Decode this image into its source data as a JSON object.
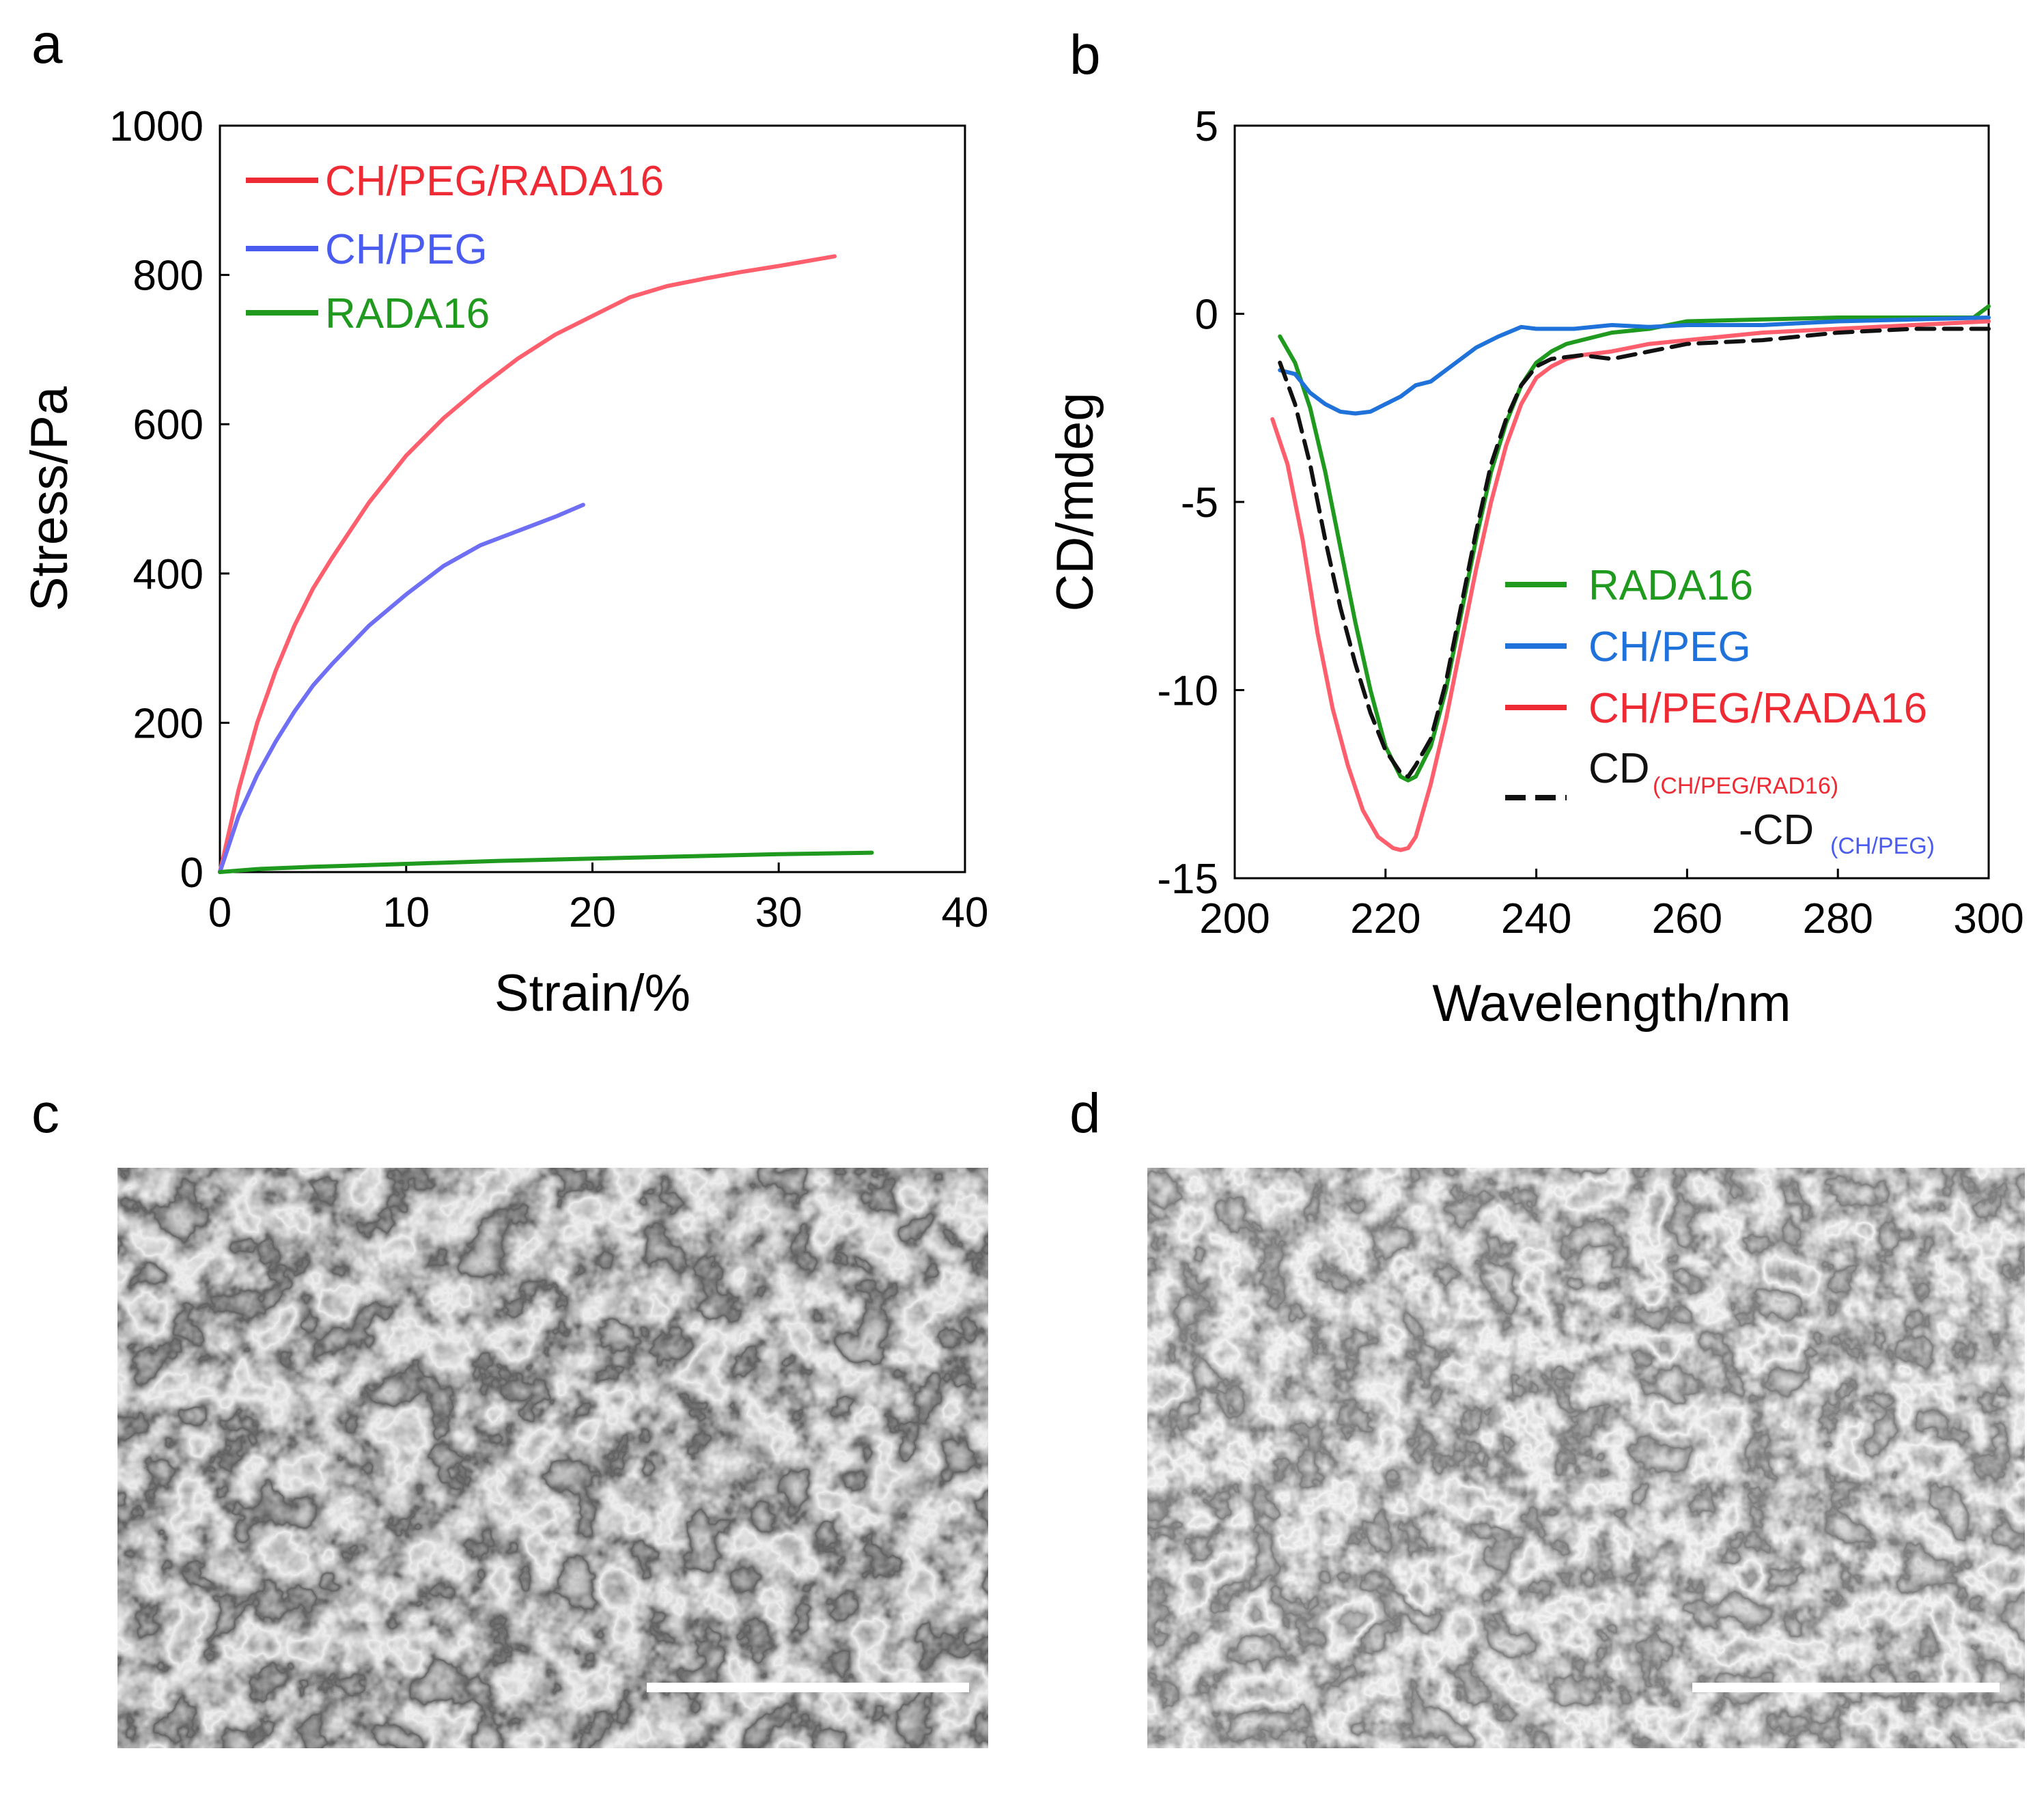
{
  "panel_labels": {
    "a": "a",
    "b": "b",
    "c": "c",
    "d": "d"
  },
  "colors": {
    "red": "#ff5e6c",
    "red_legend": "#ee2a34",
    "blue": "#6f6ff5",
    "blue_b": "#1f72d9",
    "green": "#1f9a1f",
    "dashed": "#111111"
  },
  "chart_data": [
    {
      "id": "a",
      "type": "line",
      "title": "",
      "xlabel": "Strain/%",
      "ylabel": "Stress/Pa",
      "xlim": [
        0,
        40
      ],
      "ylim": [
        0,
        1000
      ],
      "xticks": [
        0,
        10,
        20,
        30,
        40
      ],
      "yticks": [
        0,
        200,
        400,
        600,
        800,
        1000
      ],
      "grid": false,
      "legend_position": "top-left",
      "series": [
        {
          "name": "CH/PEG/RADA16",
          "color": "#ff5e6c",
          "x": [
            0,
            1,
            2,
            3,
            4,
            5,
            6,
            8,
            10,
            12,
            14,
            16,
            18,
            20,
            22,
            24,
            26,
            28,
            30,
            33
          ],
          "y": [
            0,
            110,
            200,
            270,
            330,
            380,
            420,
            495,
            558,
            608,
            650,
            688,
            720,
            745,
            770,
            785,
            795,
            804,
            812,
            825
          ]
        },
        {
          "name": "CH/PEG",
          "color": "#6f6ff5",
          "x": [
            0,
            1,
            2,
            3,
            4,
            5,
            6,
            8,
            10,
            12,
            14,
            16,
            18,
            19.5
          ],
          "y": [
            0,
            75,
            130,
            175,
            215,
            250,
            278,
            330,
            372,
            410,
            438,
            457,
            476,
            492
          ]
        },
        {
          "name": "RADA16",
          "color": "#1f9a1f",
          "x": [
            0,
            2,
            5,
            10,
            15,
            20,
            25,
            30,
            35
          ],
          "y": [
            0,
            4,
            7,
            11,
            15,
            18,
            21,
            24,
            26
          ]
        }
      ]
    },
    {
      "id": "b",
      "type": "line",
      "title": "",
      "xlabel": "Wavelength/nm",
      "ylabel": "CD/mdeg",
      "xlim": [
        200,
        300
      ],
      "ylim": [
        -15,
        5
      ],
      "xticks": [
        200,
        220,
        240,
        260,
        280,
        300
      ],
      "yticks": [
        -15,
        -10,
        -5,
        0,
        5
      ],
      "grid": false,
      "legend_position": "center-right",
      "series": [
        {
          "name": "RADA16",
          "color": "#1f9a1f",
          "dash": false,
          "x": [
            206,
            208,
            210,
            212,
            214,
            216,
            218,
            220,
            222,
            223,
            224,
            226,
            228,
            230,
            232,
            234,
            236,
            238,
            240,
            242,
            244,
            246,
            250,
            255,
            260,
            270,
            280,
            290,
            298,
            300
          ],
          "y": [
            -0.6,
            -1.3,
            -2.5,
            -4.2,
            -6.2,
            -8.2,
            -10.0,
            -11.5,
            -12.3,
            -12.4,
            -12.3,
            -11.5,
            -10.0,
            -8.0,
            -6.0,
            -4.2,
            -2.9,
            -1.9,
            -1.3,
            -1.0,
            -0.8,
            -0.7,
            -0.5,
            -0.4,
            -0.2,
            -0.15,
            -0.1,
            -0.1,
            -0.1,
            0.2
          ]
        },
        {
          "name": "CH/PEG",
          "color": "#1f72d9",
          "dash": false,
          "x": [
            206,
            208,
            210,
            212,
            214,
            216,
            218,
            220,
            222,
            224,
            226,
            228,
            230,
            232,
            235,
            238,
            240,
            245,
            250,
            255,
            260,
            270,
            280,
            290,
            300
          ],
          "y": [
            -1.5,
            -1.6,
            -2.1,
            -2.4,
            -2.6,
            -2.65,
            -2.6,
            -2.4,
            -2.2,
            -1.9,
            -1.8,
            -1.5,
            -1.2,
            -0.9,
            -0.6,
            -0.35,
            -0.4,
            -0.4,
            -0.3,
            -0.35,
            -0.3,
            -0.3,
            -0.2,
            -0.15,
            -0.1
          ]
        },
        {
          "name": "CH/PEG/RADA16",
          "color": "#ff5e6c",
          "dash": false,
          "x": [
            205,
            207,
            209,
            211,
            213,
            215,
            217,
            219,
            221,
            222,
            223,
            224,
            226,
            228,
            230,
            232,
            234,
            236,
            238,
            240,
            242,
            244,
            246,
            250,
            255,
            260,
            270,
            280,
            290,
            300
          ],
          "y": [
            -2.8,
            -4.0,
            -6.0,
            -8.5,
            -10.5,
            -12.0,
            -13.2,
            -13.9,
            -14.2,
            -14.25,
            -14.2,
            -13.9,
            -12.5,
            -10.8,
            -8.8,
            -6.8,
            -5.0,
            -3.5,
            -2.4,
            -1.7,
            -1.4,
            -1.2,
            -1.1,
            -1.0,
            -0.8,
            -0.7,
            -0.5,
            -0.4,
            -0.3,
            -0.2
          ]
        },
        {
          "name": "CD(CH/PEG/RAD16)-CD(CH/PEG)",
          "color": "#111111",
          "dash": true,
          "x": [
            206,
            208,
            210,
            212,
            214,
            216,
            218,
            220,
            222,
            223,
            224,
            226,
            228,
            230,
            232,
            234,
            236,
            238,
            240,
            242,
            246,
            250,
            255,
            260,
            270,
            280,
            290,
            300
          ],
          "y": [
            -1.3,
            -2.4,
            -4.0,
            -6.0,
            -7.8,
            -9.3,
            -10.6,
            -11.6,
            -12.2,
            -12.3,
            -12.0,
            -11.3,
            -9.8,
            -7.8,
            -5.8,
            -4.0,
            -2.8,
            -1.9,
            -1.4,
            -1.2,
            -1.1,
            -1.2,
            -1.0,
            -0.8,
            -0.7,
            -0.5,
            -0.4,
            -0.4
          ]
        }
      ],
      "legend": {
        "entries": [
          "RADA16",
          "CH/PEG",
          "CH/PEG/RADA16"
        ],
        "dashed_entry": {
          "cd1": "CD",
          "cd1_sub": "(CH/PEG/RAD16)",
          "cd2": "-CD",
          "cd2_sub": "(CH/PEG)"
        }
      }
    }
  ]
}
